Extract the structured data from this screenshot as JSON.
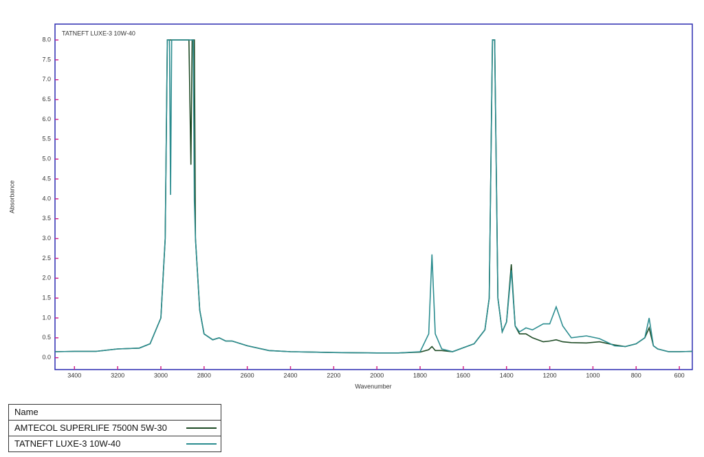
{
  "chart_data": {
    "type": "line",
    "title": "TATNEFT LUXE-3 10W-40",
    "x_label": "Wavenumber",
    "y_label": "Absorbance",
    "xlim": [
      3490,
      540
    ],
    "ylim": [
      -0.3,
      8.4
    ],
    "xticks": [
      3400,
      3200,
      3000,
      2800,
      2600,
      2400,
      2200,
      2000,
      1800,
      1600,
      1400,
      1200,
      1000,
      800,
      600
    ],
    "yticks": [
      {
        "value": 0,
        "label": "0.0"
      },
      0.5,
      {
        "value": 1,
        "label": "1.0"
      },
      1.5,
      {
        "value": 2,
        "label": "2.0"
      },
      2.5,
      {
        "value": 3,
        "label": "3.0"
      },
      3.5,
      {
        "value": 4,
        "label": "4.0"
      },
      4.5,
      {
        "value": 5,
        "label": "5.0"
      },
      5.5,
      {
        "value": 6,
        "label": "6.0"
      },
      6.5,
      {
        "value": 7,
        "label": "7.0"
      },
      7.5,
      {
        "value": 8,
        "label": "8.0"
      }
    ],
    "legend_header": "Name",
    "x": [
      3490,
      3400,
      3300,
      3200,
      3100,
      3050,
      3000,
      2980,
      2970,
      2960,
      2955,
      2950,
      2900,
      2870,
      2861,
      2855,
      2850,
      2845,
      2840,
      2820,
      2800,
      2760,
      2730,
      2700,
      2670,
      2600,
      2500,
      2400,
      2300,
      2200,
      2000,
      1900,
      1800,
      1760,
      1745,
      1730,
      1700,
      1650,
      1600,
      1550,
      1500,
      1480,
      1465,
      1455,
      1440,
      1420,
      1400,
      1378,
      1360,
      1340,
      1310,
      1280,
      1230,
      1200,
      1170,
      1140,
      1100,
      1030,
      970,
      900,
      850,
      800,
      760,
      740,
      720,
      700,
      650,
      600,
      540
    ],
    "series": [
      {
        "name": "AMTECOL SUPERLIFE 7500N 5W-30",
        "color": "#1d4a24",
        "values": [
          0.15,
          0.16,
          0.16,
          0.22,
          0.24,
          0.35,
          1.0,
          3.0,
          8.0,
          8.0,
          8.0,
          8.0,
          8.0,
          8.0,
          4.86,
          8.0,
          8.0,
          8.0,
          3.0,
          1.2,
          0.6,
          0.45,
          0.5,
          0.42,
          0.42,
          0.3,
          0.18,
          0.15,
          0.14,
          0.13,
          0.12,
          0.12,
          0.14,
          0.2,
          0.28,
          0.18,
          0.18,
          0.15,
          0.25,
          0.35,
          0.7,
          1.5,
          8.0,
          8.0,
          1.5,
          0.65,
          0.9,
          2.35,
          0.8,
          0.6,
          0.6,
          0.5,
          0.4,
          0.42,
          0.45,
          0.4,
          0.38,
          0.37,
          0.4,
          0.32,
          0.28,
          0.35,
          0.5,
          0.75,
          0.3,
          0.22,
          0.15,
          0.15,
          0.16
        ]
      },
      {
        "name": "TATNEFT LUXE-3 10W-40",
        "color": "#2a8c8f",
        "values": [
          0.15,
          0.16,
          0.16,
          0.22,
          0.24,
          0.35,
          1.0,
          3.0,
          8.0,
          8.0,
          4.1,
          8.0,
          8.0,
          8.0,
          8.0,
          8.0,
          8.0,
          3.95,
          3.0,
          1.2,
          0.6,
          0.45,
          0.5,
          0.42,
          0.42,
          0.3,
          0.18,
          0.15,
          0.14,
          0.13,
          0.12,
          0.12,
          0.15,
          0.6,
          2.6,
          0.6,
          0.22,
          0.15,
          0.25,
          0.35,
          0.7,
          1.5,
          8.0,
          8.0,
          1.5,
          0.65,
          0.9,
          2.2,
          0.8,
          0.65,
          0.75,
          0.7,
          0.85,
          0.85,
          1.28,
          0.8,
          0.5,
          0.55,
          0.48,
          0.3,
          0.28,
          0.35,
          0.5,
          1.0,
          0.3,
          0.22,
          0.15,
          0.15,
          0.16
        ]
      }
    ]
  }
}
